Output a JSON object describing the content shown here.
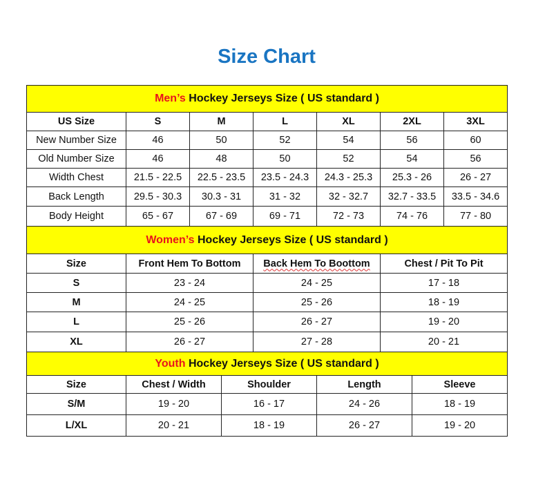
{
  "title": "Size Chart",
  "colors": {
    "title": "#1a75c2",
    "header_bg": "#ffff00",
    "accent": "#e8141c"
  },
  "men": {
    "heading_accent": "Men’s",
    "heading_rest": "Hockey Jerseys Size ( US standard )",
    "columns": [
      "US Size",
      "S",
      "M",
      "L",
      "XL",
      "2XL",
      "3XL"
    ],
    "rows": [
      [
        "New Number Size",
        "46",
        "50",
        "52",
        "54",
        "56",
        "60"
      ],
      [
        "Old Number Size",
        "46",
        "48",
        "50",
        "52",
        "54",
        "56"
      ],
      [
        "Width Chest",
        "21.5 - 22.5",
        "22.5 - 23.5",
        "23.5 - 24.3",
        "24.3 - 25.3",
        "25.3 - 26",
        "26 - 27"
      ],
      [
        "Back Length",
        "29.5 - 30.3",
        "30.3 - 31",
        "31 - 32",
        "32 - 32.7",
        "32.7 - 33.5",
        "33.5 - 34.6"
      ],
      [
        "Body Height",
        "65 - 67",
        "67 - 69",
        "69 - 71",
        "72 - 73",
        "74 - 76",
        "77 - 80"
      ]
    ]
  },
  "women": {
    "heading_accent": "Women’s",
    "heading_rest": "Hockey Jerseys Size ( US standard )",
    "columns": [
      "Size",
      "Front Hem To Bottom",
      "Back Hem To Boottom",
      "Chest / Pit To Pit"
    ],
    "rows": [
      [
        "S",
        "23 - 24",
        "24 - 25",
        "17 - 18"
      ],
      [
        "M",
        "24 - 25",
        "25 - 26",
        "18 - 19"
      ],
      [
        "L",
        "25 - 26",
        "26 - 27",
        "19 - 20"
      ],
      [
        "XL",
        "26 - 27",
        "27 - 28",
        "20 - 21"
      ]
    ]
  },
  "youth": {
    "heading_accent": "Youth",
    "heading_rest": "Hockey Jerseys Size ( US standard )",
    "columns": [
      "Size",
      "Chest / Width",
      "Shoulder",
      "Length",
      "Sleeve"
    ],
    "rows": [
      [
        "S/M",
        "19 - 20",
        "16 - 17",
        "24 - 26",
        "18 - 19"
      ],
      [
        "L/XL",
        "20 - 21",
        "18 - 19",
        "26 - 27",
        "19 - 20"
      ]
    ]
  }
}
